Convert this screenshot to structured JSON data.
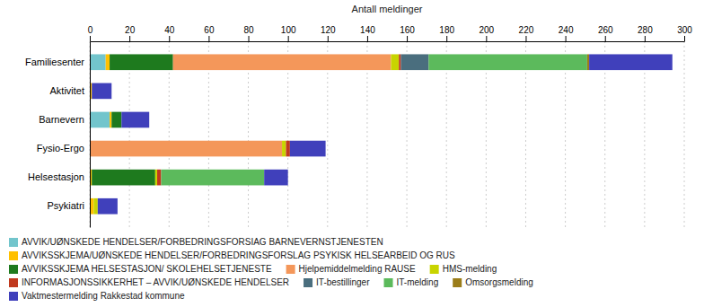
{
  "chart_data": {
    "type": "bar",
    "orientation": "horizontal",
    "stacked": true,
    "grid": true,
    "xlabel": "Antall meldinger",
    "categories": [
      "Familiesenter",
      "Aktivitet",
      "Barnevern",
      "Fysio-Ergo",
      "Helsestasjon",
      "Psykiatri"
    ],
    "xlim": [
      0,
      300
    ],
    "xticks": [
      0,
      20,
      40,
      60,
      80,
      100,
      120,
      140,
      160,
      180,
      200,
      220,
      240,
      260,
      280,
      300
    ],
    "series": [
      {
        "name": "AVVIK/UØNSKEDE HENDELSER/FORBEDRINGSFORSIAG BARNEVERNSTJENESTEN",
        "color": "#72c5cc",
        "values": [
          8,
          0,
          10,
          0,
          0,
          0
        ]
      },
      {
        "name": "AVVIKSSKJEMA/UØNSKEDE HENDELSER/FORBEDRINGSFORSLAG PSYKISK HELSEARBEID OG RUS",
        "color": "#ffc000",
        "values": [
          2,
          1,
          1,
          0,
          1,
          2
        ]
      },
      {
        "name": "AVVIKSSKJEMA HELSESTASJON/ SKOLEHELSETJENESTE",
        "color": "#1e7a1e",
        "values": [
          32,
          0,
          5,
          0,
          32,
          0
        ]
      },
      {
        "name": "Hjelpemiddelmelding RAUSE",
        "color": "#f4975a",
        "values": [
          110,
          0,
          0,
          97,
          0,
          0
        ]
      },
      {
        "name": "HMS-melding",
        "color": "#c8d400",
        "values": [
          4,
          0,
          0,
          2,
          1,
          2
        ]
      },
      {
        "name": "INFORMASJONSSIKKERHET – AVVIK/UØNSKEDE HENDELSER",
        "color": "#c0391e",
        "values": [
          1,
          0,
          0,
          2,
          2,
          0
        ]
      },
      {
        "name": "IT-bestillinger",
        "color": "#4a6e7e",
        "values": [
          14,
          0,
          0,
          0,
          0,
          0
        ]
      },
      {
        "name": "IT-melding",
        "color": "#5cba5c",
        "values": [
          80,
          0,
          0,
          0,
          52,
          0
        ]
      },
      {
        "name": "Omsorgsmelding",
        "color": "#9b7d1a",
        "values": [
          1,
          0,
          0,
          0,
          0,
          0
        ]
      },
      {
        "name": "Vaktmestermelding Rakkestad kommune",
        "color": "#4040bb",
        "values": [
          42,
          10,
          14,
          18,
          12,
          10
        ]
      }
    ]
  }
}
